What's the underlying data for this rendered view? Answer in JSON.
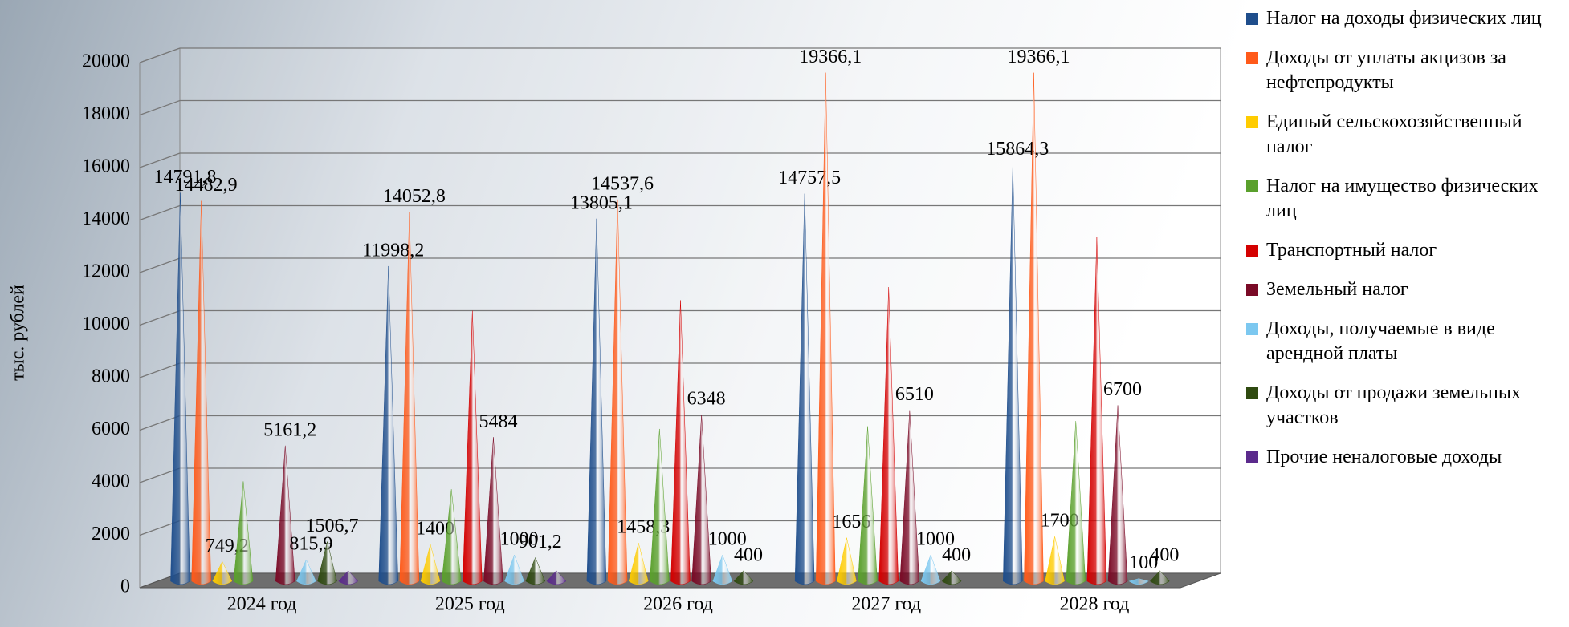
{
  "chart_data": {
    "type": "cone",
    "y_label": "тыс. рублей",
    "categories": [
      "2024 год",
      "2025 год",
      "2026 год",
      "2027 год",
      "2028 год"
    ],
    "ylim": [
      0,
      20000
    ],
    "yticks": [
      0,
      2000,
      4000,
      6000,
      8000,
      10000,
      12000,
      14000,
      16000,
      18000,
      20000
    ],
    "grid": true,
    "legend": "right",
    "series": [
      {
        "name": "Налог на доходы физических лиц",
        "color": "#1f4e8c",
        "values": [
          14791.8,
          11998.2,
          13805.1,
          14757.5,
          15864.3
        ],
        "value_labels": [
          "14791,8",
          "11998,2",
          "13805,1",
          "14757,5",
          "15864,3"
        ]
      },
      {
        "name": "Доходы от уплаты акцизов за нефтепродукты",
        "color": "#ff5a1a",
        "values": [
          14482.9,
          14052.8,
          14537.6,
          19366.1,
          19366.1
        ],
        "value_labels": [
          "14482,9",
          "14052,8",
          "14537,6",
          "19366,1",
          "19366,1"
        ]
      },
      {
        "name": "Единый сельскохозяйственный налог",
        "color": "#ffcc00",
        "values": [
          749.2,
          1400,
          1458.3,
          1656,
          1700
        ],
        "value_labels": [
          "749,2",
          "1400",
          "1458,3",
          "1656",
          "1700"
        ]
      },
      {
        "name": "Налог на имущество физических лиц",
        "color": "#5aa02c",
        "values": [
          3800,
          3500,
          5800,
          5900,
          6100
        ]
      },
      {
        "name": "Транспортный налог",
        "color": "#d40000",
        "values": [
          null,
          10300,
          10700,
          11200,
          13100
        ]
      },
      {
        "name": "Земельный налог",
        "color": "#7a0a26",
        "values": [
          5161.2,
          5484,
          6348,
          6510,
          6700
        ],
        "value_labels": [
          "5161,2",
          "5484",
          "6348",
          "6510",
          "6700"
        ]
      },
      {
        "name": "Доходы, получаемые в виде арендной платы",
        "color": "#7cc8f0",
        "values": [
          815.9,
          1000,
          1000,
          1000,
          100
        ],
        "value_labels": [
          "815,9",
          "1000",
          "1000",
          "1000",
          "100"
        ]
      },
      {
        "name": "Доходы от продажи земельных участков",
        "color": "#2f4a10",
        "values": [
          1506.7,
          901.2,
          400,
          400,
          400
        ],
        "value_labels": [
          "1506,7",
          "901,2",
          "400",
          "400",
          "400"
        ]
      },
      {
        "name": "Прочие неналоговые доходы",
        "color": "#5b2a8c",
        "values": [
          400,
          400,
          null,
          null,
          null
        ]
      }
    ]
  }
}
